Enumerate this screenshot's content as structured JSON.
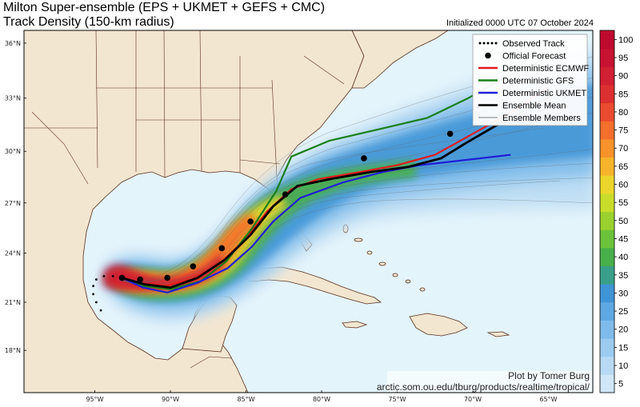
{
  "title_line1": "Milton Super-ensemble (EPS + UKMET + GEFS + CMC)",
  "title_line2": "Track Density (150-km radius)",
  "initialized": "Initialized 0000 UTC 07 October 2024",
  "credit_line1": "Plot by Tomer Burg",
  "credit_line2": "arctic.som.ou.edu/tburg/products/realtime/tropical/",
  "legend": [
    {
      "label": "Observed Track",
      "kind": "dotted",
      "color": "#000000"
    },
    {
      "label": "Official Forecast",
      "kind": "dot",
      "color": "#000000"
    },
    {
      "label": "Deterministic ECMWF",
      "kind": "line",
      "color": "#e41a1c"
    },
    {
      "label": "Deterministic GFS",
      "kind": "line",
      "color": "#1a7f1a"
    },
    {
      "label": "Deterministic UKMET",
      "kind": "line",
      "color": "#1f1fd6"
    },
    {
      "label": "Ensemble Mean",
      "kind": "line",
      "color": "#000000"
    },
    {
      "label": "Ensemble Members",
      "kind": "thin",
      "color": "#555555"
    }
  ],
  "lat_labels": [
    "18°N",
    "21°N",
    "24°N",
    "27°N",
    "30°N",
    "33°N",
    "36°N"
  ],
  "lon_labels": [
    "95°W",
    "90°W",
    "85°W",
    "80°W",
    "75°W",
    "70°W",
    "65°W"
  ],
  "colorbar": {
    "ticks": [
      "5",
      "10",
      "15",
      "20",
      "25",
      "30",
      "35",
      "40",
      "45",
      "50",
      "55",
      "60",
      "65",
      "70",
      "75",
      "80",
      "85",
      "90",
      "95",
      "100"
    ],
    "colors": [
      "#cfe7f7",
      "#b7d9f3",
      "#9ccbef",
      "#7fbbea",
      "#5fa8e2",
      "#3f94d6",
      "#3a9f8a",
      "#48b04a",
      "#6cc23a",
      "#9ad12f",
      "#c8dd2a",
      "#ecd52a",
      "#f6b42a",
      "#f8922a",
      "#f46e2c",
      "#ea4a2f",
      "#dc2f31",
      "#d11f33",
      "#c81232",
      "#bf0a30"
    ]
  },
  "official_forecast_latlon": [
    [
      22.5,
      -93.2
    ],
    [
      22.4,
      -92.0
    ],
    [
      22.5,
      -90.2
    ],
    [
      23.2,
      -88.5
    ],
    [
      24.3,
      -86.6
    ],
    [
      25.9,
      -84.7
    ],
    [
      27.5,
      -82.4
    ],
    [
      29.6,
      -77.2
    ],
    [
      31.0,
      -71.5
    ]
  ],
  "observed_track_latlon": [
    [
      20.5,
      -94.6
    ],
    [
      21.0,
      -94.9
    ],
    [
      21.5,
      -95.1
    ],
    [
      22.0,
      -95.1
    ],
    [
      22.4,
      -94.9
    ],
    [
      22.6,
      -94.4
    ],
    [
      22.6,
      -93.8
    ],
    [
      22.6,
      -93.2
    ]
  ],
  "tracks": {
    "ecmwf": [
      [
        22.5,
        -93.2
      ],
      [
        22.2,
        -92.0
      ],
      [
        22.0,
        -90.4
      ],
      [
        22.4,
        -88.6
      ],
      [
        23.3,
        -86.8
      ],
      [
        24.8,
        -85.1
      ],
      [
        26.5,
        -83.6
      ],
      [
        27.8,
        -82.0
      ],
      [
        28.4,
        -80.2
      ],
      [
        28.8,
        -77.5
      ],
      [
        29.2,
        -75.0
      ],
      [
        29.8,
        -72.5
      ],
      [
        31.0,
        -70.0
      ],
      [
        32.2,
        -67.5
      ],
      [
        33.6,
        -65.0
      ]
    ],
    "gfs": [
      [
        22.5,
        -93.2
      ],
      [
        22.0,
        -91.8
      ],
      [
        21.8,
        -90.0
      ],
      [
        22.3,
        -88.0
      ],
      [
        23.5,
        -86.3
      ],
      [
        25.5,
        -84.6
      ],
      [
        27.7,
        -83.0
      ],
      [
        29.7,
        -82.0
      ],
      [
        30.6,
        -79.5
      ],
      [
        31.2,
        -76.5
      ],
      [
        31.9,
        -73.0
      ],
      [
        33.0,
        -70.3
      ],
      [
        34.3,
        -67.5
      ],
      [
        35.6,
        -64.0
      ]
    ],
    "ukmet": [
      [
        22.5,
        -93.2
      ],
      [
        21.9,
        -91.8
      ],
      [
        21.6,
        -90.2
      ],
      [
        22.2,
        -88.2
      ],
      [
        23.1,
        -86.2
      ],
      [
        24.4,
        -84.6
      ],
      [
        25.9,
        -83.2
      ],
      [
        27.3,
        -81.4
      ],
      [
        28.2,
        -78.6
      ],
      [
        28.8,
        -76.0
      ],
      [
        29.2,
        -73.5
      ],
      [
        29.5,
        -70.5
      ],
      [
        29.8,
        -67.5
      ]
    ],
    "mean": [
      [
        22.5,
        -93.2
      ],
      [
        22.1,
        -91.7
      ],
      [
        21.9,
        -90.0
      ],
      [
        22.5,
        -88.2
      ],
      [
        23.6,
        -86.4
      ],
      [
        25.1,
        -84.7
      ],
      [
        26.8,
        -83.2
      ],
      [
        28.0,
        -81.6
      ],
      [
        28.4,
        -79.4
      ],
      [
        28.8,
        -76.8
      ],
      [
        29.1,
        -74.3
      ],
      [
        29.6,
        -72.1
      ],
      [
        30.5,
        -70.4
      ],
      [
        31.4,
        -68.6
      ],
      [
        32.4,
        -66.4
      ],
      [
        33.2,
        -64.7
      ]
    ]
  }
}
